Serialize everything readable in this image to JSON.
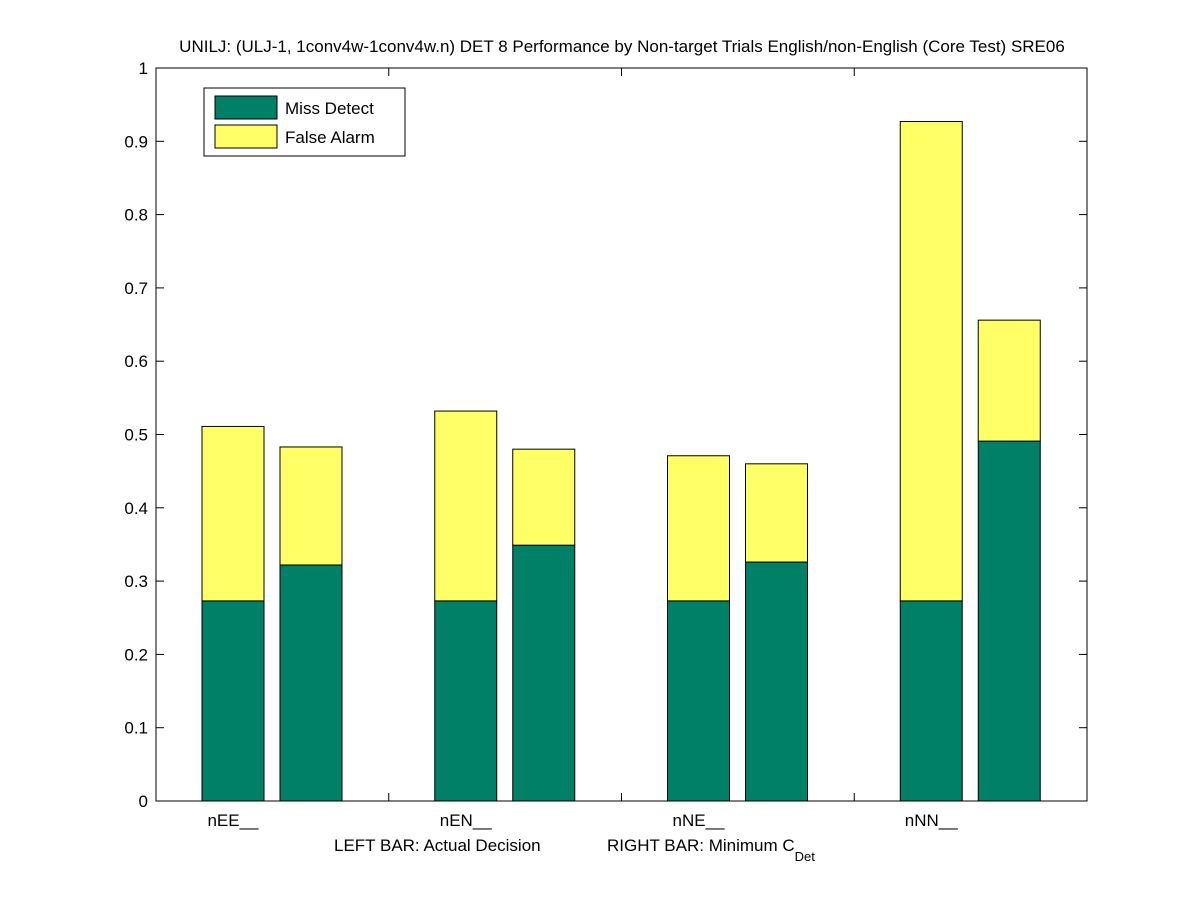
{
  "chart_data": {
    "type": "bar",
    "stacked": true,
    "title": "UNILJ: (ULJ-1, 1conv4w-1conv4w.n) DET 8 Performance by Non-target Trials English/non-English (Core Test) SRE06",
    "xlabel_left": "LEFT BAR: Actual Decision",
    "xlabel_right_main": "RIGHT BAR: Minimum C",
    "xlabel_right_sub": "Det",
    "ylabel": "",
    "ylim": [
      0,
      1
    ],
    "yticks": [
      "0",
      "0.1",
      "0.2",
      "0.3",
      "0.4",
      "0.5",
      "0.6",
      "0.7",
      "0.8",
      "0.9",
      "1"
    ],
    "categories": [
      "nEE__",
      "nEN__",
      "nNE__",
      "nNN__"
    ],
    "bar_pairs": [
      "Actual Decision",
      "Minimum C_Det"
    ],
    "series": [
      {
        "name": "Miss Detect",
        "color": "#008066",
        "left": [
          0.273,
          0.273,
          0.273,
          0.273
        ],
        "right": [
          0.322,
          0.349,
          0.326,
          0.491
        ]
      },
      {
        "name": "False Alarm",
        "color": "#ffff66",
        "left": [
          0.238,
          0.259,
          0.198,
          0.654
        ],
        "right": [
          0.161,
          0.131,
          0.134,
          0.165
        ]
      }
    ],
    "legend_position": "top-left",
    "grid": false
  }
}
